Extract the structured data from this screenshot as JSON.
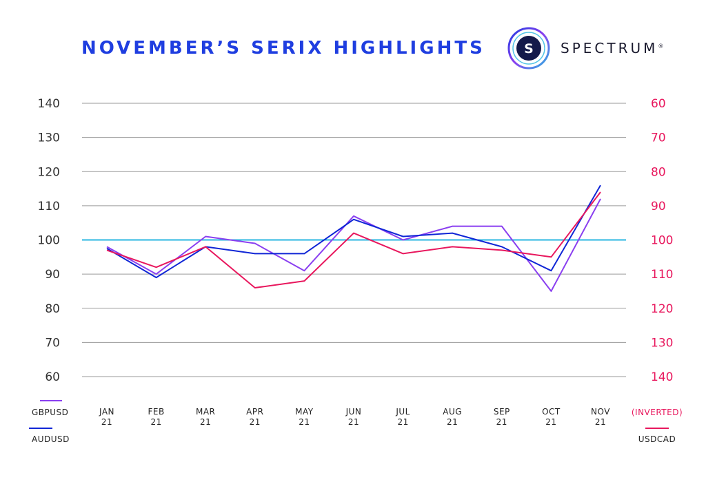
{
  "header": {
    "title": "NOVEMBER’S SERIX HIGHLIGHTS",
    "brand": {
      "name": "SPECTRUM",
      "mark": "®",
      "logo_letter": "S"
    }
  },
  "colors": {
    "title": "#1f3ee0",
    "gbpusd": "#8a3ff0",
    "audusd": "#1026d6",
    "usdcad": "#e8175d",
    "baseline": "#28b6e0",
    "grid": "#9a9a9a"
  },
  "chart_data": {
    "type": "line",
    "categories": [
      [
        "JAN",
        "21"
      ],
      [
        "FEB",
        "21"
      ],
      [
        "MAR",
        "21"
      ],
      [
        "APR",
        "21"
      ],
      [
        "MAY",
        "21"
      ],
      [
        "JUN",
        "21"
      ],
      [
        "JUL",
        "21"
      ],
      [
        "AUG",
        "21"
      ],
      [
        "SEP",
        "21"
      ],
      [
        "OCT",
        "21"
      ],
      [
        "NOV",
        "21"
      ]
    ],
    "left_axis": {
      "ylim": [
        60,
        140
      ],
      "ticks": [
        "140",
        "130",
        "120",
        "110",
        "100",
        "90",
        "80",
        "70",
        "60"
      ]
    },
    "right_axis": {
      "inverted": true,
      "ylim": [
        60,
        140
      ],
      "ticks": [
        "60",
        "70",
        "80",
        "90",
        "100",
        "110",
        "120",
        "130",
        "140"
      ],
      "note": "(INVERTED)"
    },
    "baseline": 100,
    "grid": true,
    "series": [
      {
        "name": "GBPUSD",
        "axis": "left",
        "color": "#8a3ff0",
        "values": [
          98,
          90,
          101,
          99,
          91,
          107,
          100,
          104,
          104,
          85,
          112
        ]
      },
      {
        "name": "AUDUSD",
        "axis": "left",
        "color": "#1026d6",
        "values": [
          97.5,
          89,
          98,
          96,
          96,
          106,
          101,
          102,
          98,
          91,
          116
        ]
      },
      {
        "name": "USDCAD",
        "axis": "right",
        "color": "#e8175d",
        "values": [
          103,
          108,
          102,
          114,
          112,
          98,
          104,
          102,
          103,
          105,
          86
        ]
      }
    ]
  }
}
